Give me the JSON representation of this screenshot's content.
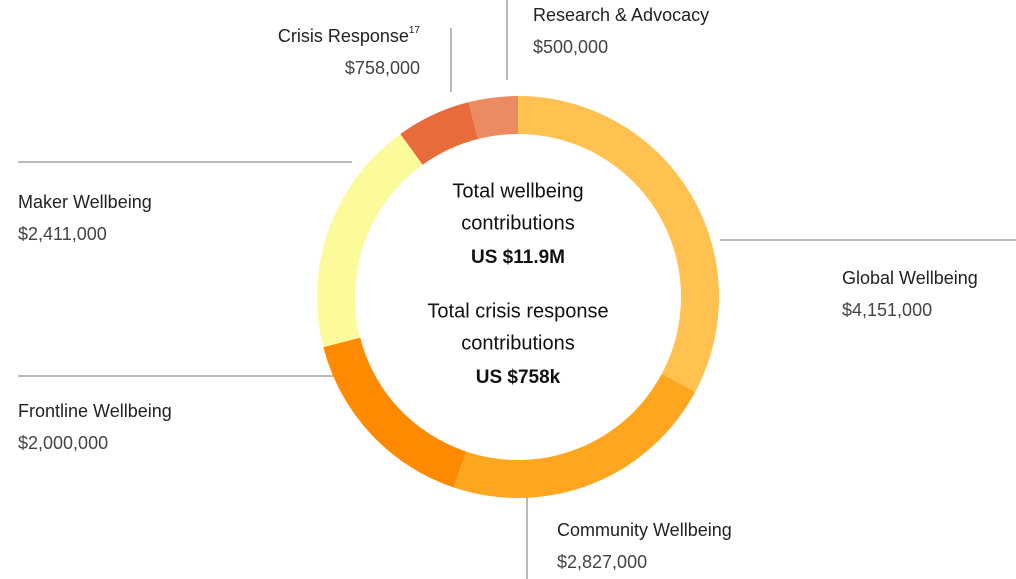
{
  "chart_data": {
    "type": "donut",
    "categories": [
      "Global Wellbeing",
      "Community Wellbeing",
      "Frontline Wellbeing",
      "Maker Wellbeing",
      "Crisis Response",
      "Research & Advocacy"
    ],
    "category_notes": [
      null,
      null,
      null,
      null,
      "17",
      null
    ],
    "values": [
      4151000,
      2827000,
      2000000,
      2411000,
      758000,
      500000
    ],
    "value_labels": [
      "$4,151,000",
      "$2,827,000",
      "$2,000,000",
      "$2,411,000",
      "$758,000",
      "$500,000"
    ],
    "colors": [
      "#ffc14f",
      "#ffa620",
      "#ff8a00",
      "#fbfb9c",
      "#e86b3b",
      "#ec8a62"
    ],
    "center_text": [
      {
        "lines": [
          "Total wellbeing",
          "contributions"
        ],
        "value": "US $11.9M"
      },
      {
        "lines": [
          "Total crisis response",
          "contributions"
        ],
        "value": "US $758k"
      }
    ]
  }
}
